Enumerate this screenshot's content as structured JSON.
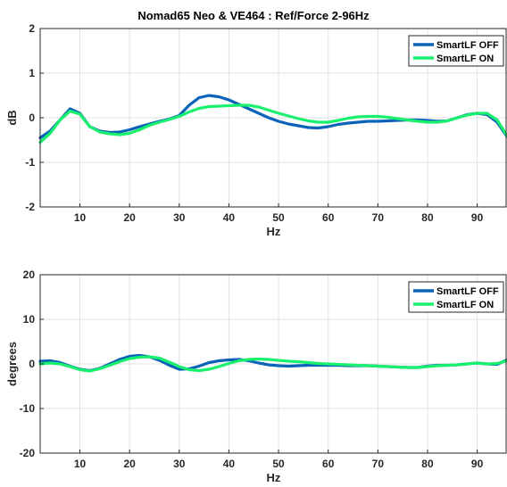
{
  "chart_data": [
    {
      "type": "line",
      "title": "Nomad65 Neo & VE464 : Ref/Force 2-96Hz",
      "xlabel": "Hz",
      "ylabel": "dB",
      "xlim": [
        2,
        96
      ],
      "ylim": [
        -2,
        2
      ],
      "xticks": [
        10,
        20,
        30,
        40,
        50,
        60,
        70,
        80,
        90
      ],
      "yticks": [
        -2,
        -1,
        0,
        1,
        2
      ],
      "grid": true,
      "legend": "top-right",
      "series": [
        {
          "name": "SmartLF OFF",
          "color": "#0a63b8",
          "x": [
            2,
            4,
            6,
            8,
            10,
            12,
            14,
            16,
            18,
            20,
            22,
            24,
            26,
            28,
            30,
            32,
            34,
            36,
            38,
            40,
            42,
            44,
            46,
            48,
            50,
            52,
            54,
            56,
            58,
            60,
            62,
            64,
            66,
            68,
            70,
            72,
            74,
            76,
            78,
            80,
            82,
            84,
            86,
            88,
            90,
            92,
            94,
            96
          ],
          "values": [
            -0.45,
            -0.3,
            -0.05,
            0.2,
            0.1,
            -0.2,
            -0.3,
            -0.33,
            -0.32,
            -0.27,
            -0.2,
            -0.14,
            -0.08,
            -0.03,
            0.05,
            0.28,
            0.45,
            0.5,
            0.47,
            0.4,
            0.3,
            0.2,
            0.1,
            0.0,
            -0.08,
            -0.14,
            -0.18,
            -0.22,
            -0.23,
            -0.2,
            -0.15,
            -0.12,
            -0.1,
            -0.08,
            -0.08,
            -0.07,
            -0.06,
            -0.05,
            -0.05,
            -0.06,
            -0.08,
            -0.07,
            0.0,
            0.07,
            0.1,
            0.07,
            -0.1,
            -0.42
          ]
        },
        {
          "name": "SmartLF ON",
          "color": "#19f06e",
          "x": [
            2,
            4,
            6,
            8,
            10,
            12,
            14,
            16,
            18,
            20,
            22,
            24,
            26,
            28,
            30,
            32,
            34,
            36,
            38,
            40,
            42,
            44,
            46,
            48,
            50,
            52,
            54,
            56,
            58,
            60,
            62,
            64,
            66,
            68,
            70,
            72,
            74,
            76,
            78,
            80,
            82,
            84,
            86,
            88,
            90,
            92,
            94,
            96
          ],
          "values": [
            -0.55,
            -0.35,
            -0.05,
            0.15,
            0.08,
            -0.2,
            -0.32,
            -0.36,
            -0.38,
            -0.35,
            -0.27,
            -0.17,
            -0.1,
            -0.04,
            0.03,
            0.13,
            0.21,
            0.25,
            0.26,
            0.27,
            0.28,
            0.28,
            0.24,
            0.17,
            0.1,
            0.04,
            -0.02,
            -0.07,
            -0.1,
            -0.1,
            -0.06,
            -0.01,
            0.02,
            0.03,
            0.03,
            0.01,
            -0.02,
            -0.05,
            -0.08,
            -0.1,
            -0.1,
            -0.07,
            0.0,
            0.06,
            0.1,
            0.1,
            -0.05,
            -0.4
          ]
        }
      ]
    },
    {
      "type": "line",
      "title": "",
      "xlabel": "Hz",
      "ylabel": "degrees",
      "xlim": [
        2,
        96
      ],
      "ylim": [
        -20,
        20
      ],
      "xticks": [
        10,
        20,
        30,
        40,
        50,
        60,
        70,
        80,
        90
      ],
      "yticks": [
        -20,
        -10,
        0,
        10,
        20
      ],
      "grid": true,
      "legend": "top-right",
      "series": [
        {
          "name": "SmartLF OFF",
          "color": "#0a63b8",
          "x": [
            2,
            4,
            6,
            8,
            10,
            12,
            14,
            16,
            18,
            20,
            22,
            24,
            26,
            28,
            30,
            32,
            34,
            36,
            38,
            40,
            42,
            44,
            46,
            48,
            50,
            52,
            54,
            56,
            58,
            60,
            62,
            64,
            66,
            68,
            70,
            72,
            74,
            76,
            78,
            80,
            82,
            84,
            86,
            88,
            90,
            92,
            94,
            96
          ],
          "values": [
            0.6,
            0.7,
            0.3,
            -0.5,
            -1.2,
            -1.5,
            -1.0,
            0.0,
            1.0,
            1.7,
            1.9,
            1.6,
            0.8,
            -0.3,
            -1.2,
            -1.1,
            -0.5,
            0.3,
            0.7,
            0.9,
            1.0,
            0.7,
            0.2,
            -0.2,
            -0.4,
            -0.5,
            -0.4,
            -0.3,
            -0.3,
            -0.3,
            -0.3,
            -0.4,
            -0.4,
            -0.4,
            -0.5,
            -0.6,
            -0.7,
            -0.8,
            -0.8,
            -0.5,
            -0.3,
            -0.3,
            -0.2,
            0.0,
            0.2,
            0.0,
            -0.1,
            0.9
          ]
        },
        {
          "name": "SmartLF ON",
          "color": "#19f06e",
          "x": [
            2,
            4,
            6,
            8,
            10,
            12,
            14,
            16,
            18,
            20,
            22,
            24,
            26,
            28,
            30,
            32,
            34,
            36,
            38,
            40,
            42,
            44,
            46,
            48,
            50,
            52,
            54,
            56,
            58,
            60,
            62,
            64,
            66,
            68,
            70,
            72,
            74,
            76,
            78,
            80,
            82,
            84,
            86,
            88,
            90,
            92,
            94,
            96
          ],
          "values": [
            0.0,
            0.2,
            0.0,
            -0.6,
            -1.3,
            -1.6,
            -1.1,
            -0.3,
            0.5,
            1.2,
            1.5,
            1.6,
            1.3,
            0.4,
            -0.6,
            -1.3,
            -1.5,
            -1.2,
            -0.6,
            0.1,
            0.7,
            1.0,
            1.1,
            1.0,
            0.8,
            0.6,
            0.5,
            0.3,
            0.1,
            0.0,
            -0.1,
            -0.2,
            -0.3,
            -0.4,
            -0.5,
            -0.6,
            -0.7,
            -0.8,
            -0.8,
            -0.6,
            -0.4,
            -0.3,
            -0.2,
            0.0,
            0.2,
            0.0,
            0.1,
            0.7
          ]
        }
      ]
    }
  ]
}
